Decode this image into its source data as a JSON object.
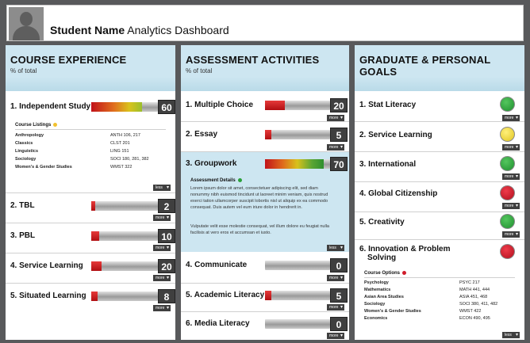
{
  "header": {
    "title_bold": "Student Name",
    "title_rest": " Analytics Dashboard"
  },
  "icons": {
    "avatar": "person-silhouette-icon",
    "expand": "chevron-down-icon"
  },
  "labels": {
    "more": "more",
    "less": "less"
  },
  "course": {
    "title": "COURSE EXPERIENCE",
    "subtitle": "% of total",
    "items": [
      {
        "label": "1. Independent Study",
        "value": "60",
        "level": 0.6
      },
      {
        "label": "2. TBL",
        "value": "2",
        "level": 0.06
      },
      {
        "label": "3. PBL",
        "value": "10",
        "level": 0.12
      },
      {
        "label": "4. Service Learning",
        "value": "20",
        "level": 0.16
      },
      {
        "label": "5. Situated Learning",
        "value": "8",
        "level": 0.1
      }
    ],
    "listings_title": "Course Listings",
    "listings": [
      {
        "name": "Anthropology",
        "code": "ANTH 106, 217"
      },
      {
        "name": "Classics",
        "code": "CLST 201"
      },
      {
        "name": "Linguistics",
        "code": "LING 151"
      },
      {
        "name": "Sociology",
        "code": "SOCI 180, 281, 382"
      },
      {
        "name": "Women's & Gender Studies",
        "code": "WMST 322"
      }
    ]
  },
  "assessment": {
    "title": "ASSESSMENT ACTIVITIES",
    "subtitle": "% of total",
    "items": [
      {
        "label": "1. Multiple Choice",
        "value": "20",
        "level": 0.3
      },
      {
        "label": "2. Essay",
        "value": "5",
        "level": 0.08
      },
      {
        "label": "3. Groupwork",
        "value": "70",
        "level": 0.82
      },
      {
        "label": "4. Communicate",
        "value": "0",
        "level": 0.0
      },
      {
        "label": "5. Academic Literacy",
        "value": "5",
        "level": 0.08
      },
      {
        "label": "6. Media Literacy",
        "value": "0",
        "level": 0.0
      }
    ],
    "details_title": "Assessment Details",
    "details_p1": "Lorem ipsum dolor sit amet, consectetuer adipiscing elit, sed diam nonummy nibh euismod tincidunt ut laoreet minim veniam, quis nostrud exerci tation ullamcorper suscipit lobortis nisl ut aliquip ex ea commodo consequat. Duis autem vel eum iriure dolor in hendrerit in.",
    "details_p2": "Vulputate velit esse molestie consequat, vel illum dolore eu feugiat nulla facilisis at vero eros et accumsan et iusto."
  },
  "goals": {
    "title": "GRADUATE & PERSONAL GOALS",
    "items": [
      {
        "label": "1. Stat Literacy",
        "status": "green"
      },
      {
        "label": "2. Service Learning",
        "status": "yellow"
      },
      {
        "label": "3. International",
        "status": "green"
      },
      {
        "label": "4. Global Citizenship",
        "status": "red"
      },
      {
        "label": "5. Creativity",
        "status": "green"
      },
      {
        "label_line1": "6. Innovation & Problem",
        "label_line2": "Solving",
        "status": "red"
      }
    ],
    "options_title": "Course Options",
    "options": [
      {
        "name": "Psychology",
        "code": "PSYC 217"
      },
      {
        "name": "Mathematics",
        "code": "MATH 441, 444"
      },
      {
        "name": "Asian Area Studies",
        "code": "ASIA 451, 468"
      },
      {
        "name": "Sociology",
        "code": "SOCI 380, 411, 482"
      },
      {
        "name": "Women's & Gender Studies",
        "code": "WMST 422"
      },
      {
        "name": "Economics",
        "code": "ECON 490, 495"
      }
    ],
    "status_colors": {
      "green": "#2aa03a",
      "yellow": "#f2d82a",
      "red": "#d01c2a"
    }
  }
}
